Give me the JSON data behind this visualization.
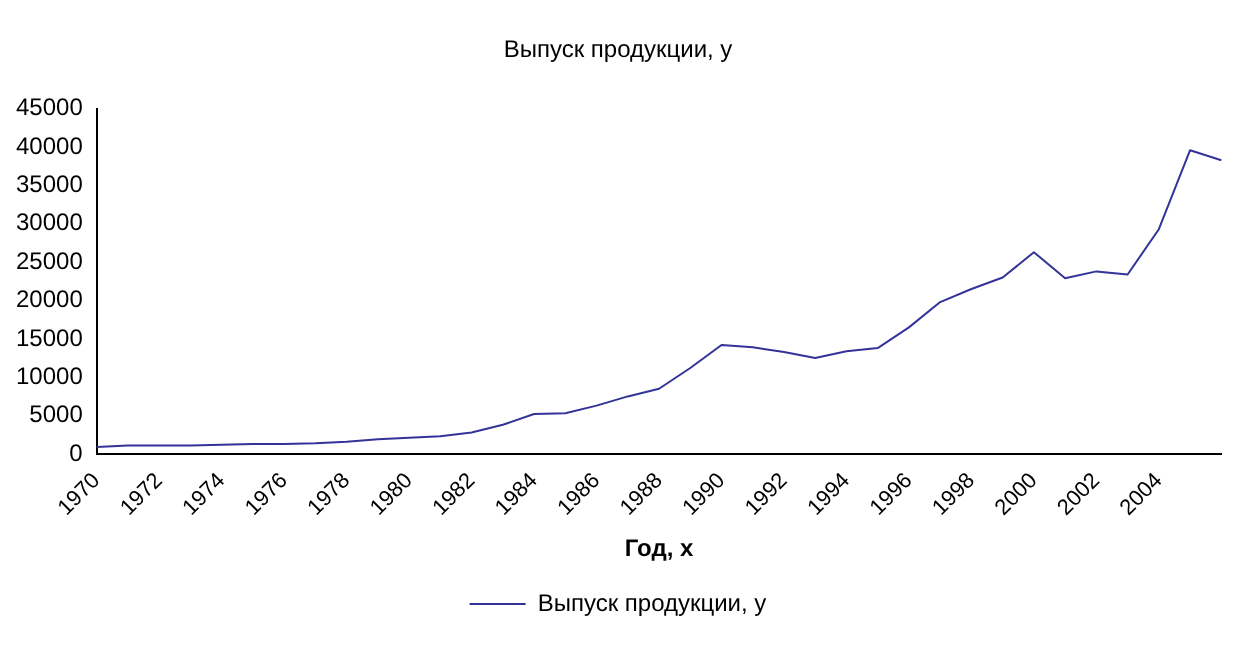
{
  "chart_data": {
    "type": "line",
    "title": "Выпуск продукции, y",
    "xlabel": "Год, x",
    "categories": [
      "1970",
      null,
      "1972",
      null,
      "1974",
      null,
      "1976",
      null,
      "1978",
      null,
      "1980",
      null,
      "1982",
      null,
      "1984",
      null,
      "1986",
      null,
      "1988",
      null,
      "1990",
      null,
      "1992",
      null,
      "1994",
      null,
      "1996",
      null,
      "1998",
      null,
      "2000",
      null,
      "2002",
      null,
      "2004",
      null,
      null
    ],
    "series": [
      {
        "name": "Выпуск продукции, y",
        "color": "#333399",
        "values": [
          900,
          1100,
          1100,
          1100,
          1200,
          1300,
          1300,
          1400,
          1600,
          1900,
          2100,
          2300,
          2800,
          3800,
          5200,
          5300,
          6300,
          7500,
          8500,
          11200,
          14200,
          13900,
          13300,
          12500,
          13400,
          13800,
          16500,
          19800,
          21500,
          23000,
          26300,
          22900,
          23800,
          23400,
          29300,
          39600,
          38300
        ]
      }
    ],
    "ylim": [
      0,
      45000
    ],
    "yticks": [
      0,
      5000,
      10000,
      15000,
      20000,
      25000,
      30000,
      35000,
      40000,
      45000
    ],
    "grid": false,
    "legend": "bottom",
    "marker": "none",
    "line_style": "solid"
  }
}
